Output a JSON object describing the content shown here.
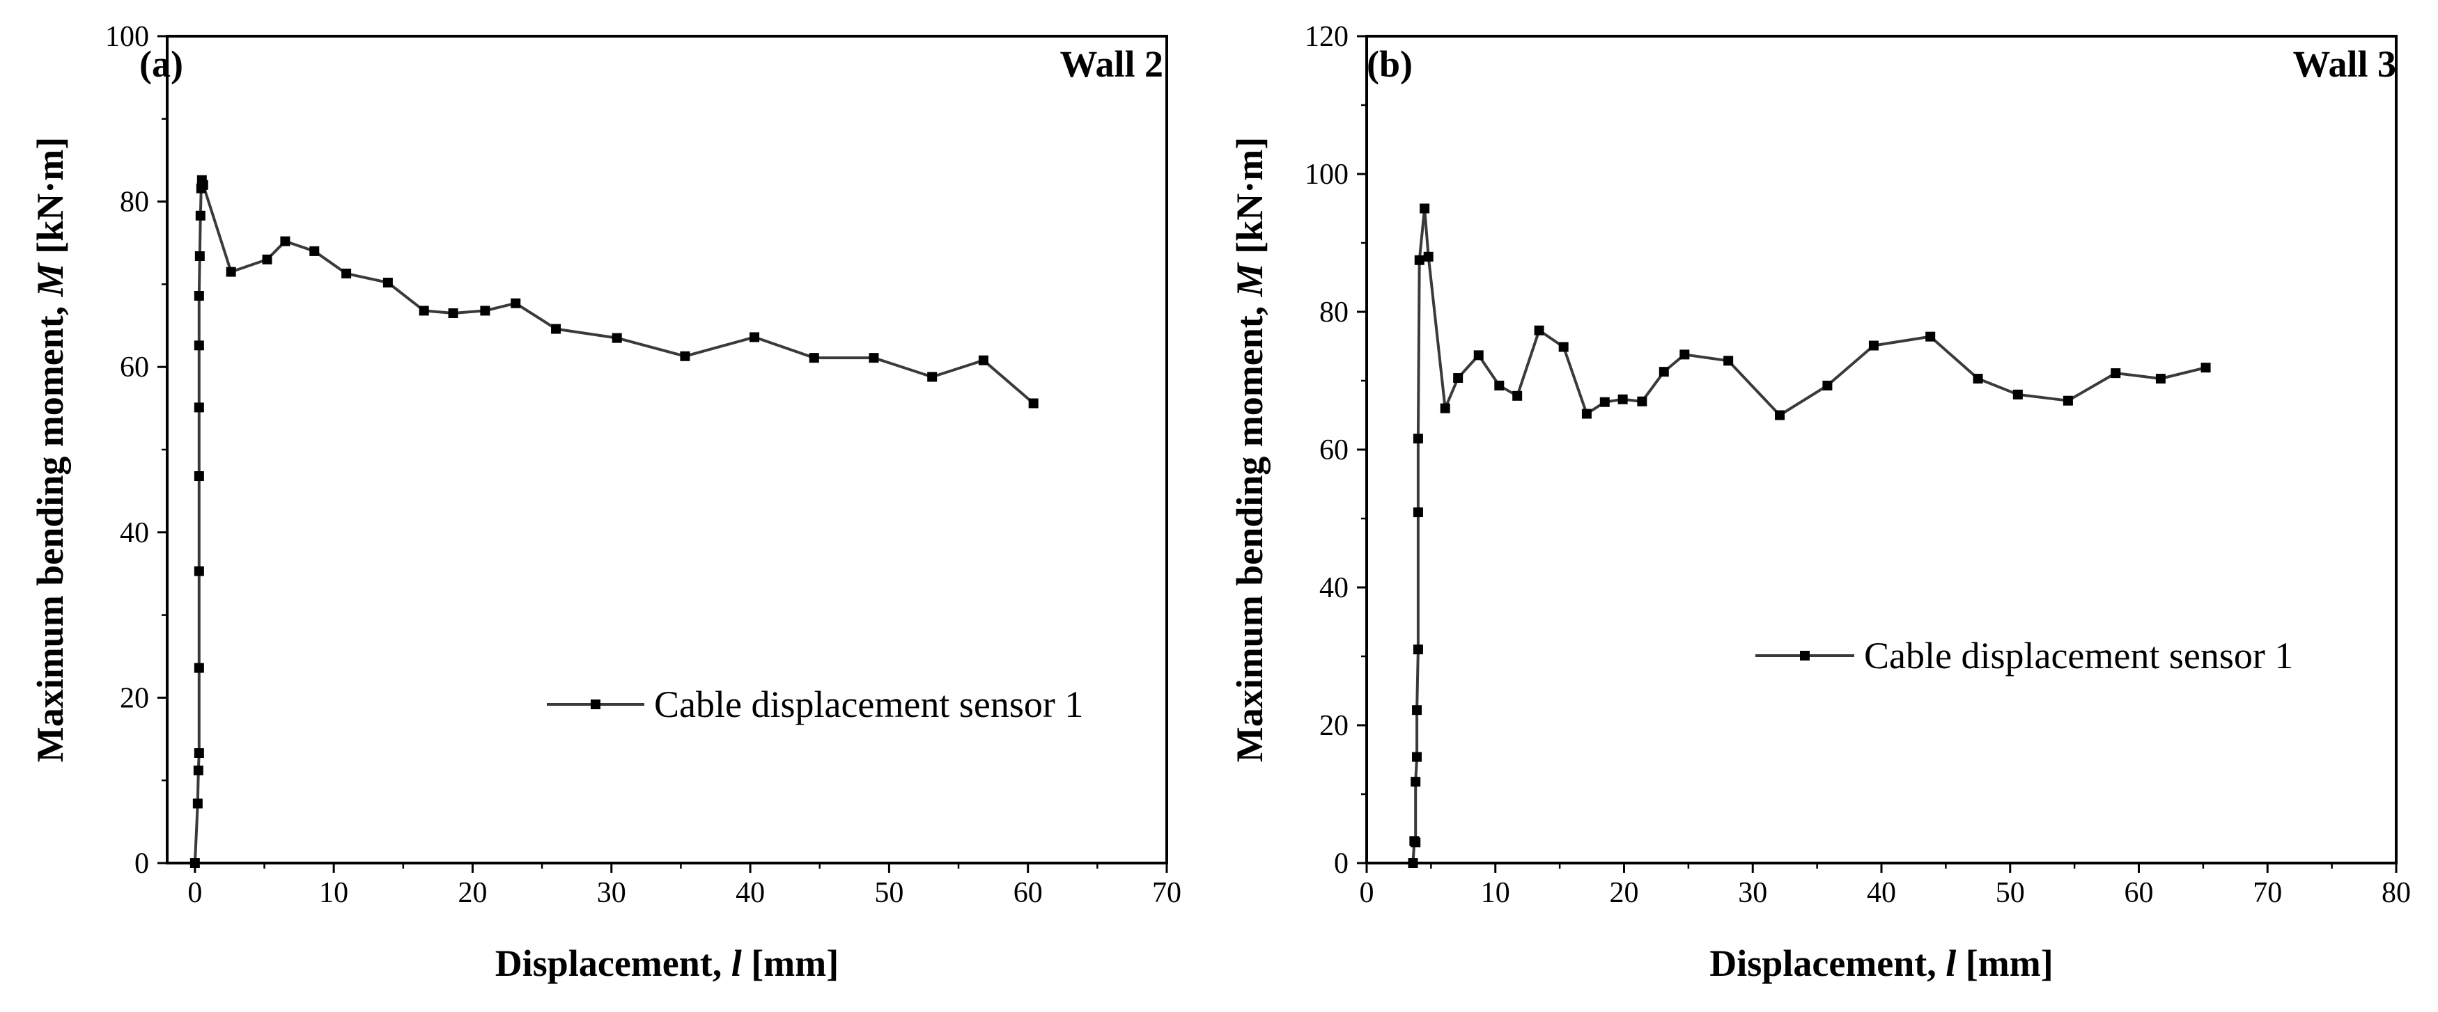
{
  "chart_data": [
    {
      "type": "line",
      "panel_label": "(a)",
      "title": "Wall 2",
      "xlabel": "Displacement, l [mm]",
      "xlabel_parts": [
        "Displacement, ",
        "l",
        " [mm]"
      ],
      "ylabel": "Maximum bending moment, M [kN·m]",
      "ylabel_parts": [
        "Maximum bending moment, ",
        "M",
        " [kN·m]"
      ],
      "xlim": [
        -2,
        70
      ],
      "ylim": [
        0,
        100
      ],
      "xticks": [
        0,
        10,
        20,
        30,
        40,
        50,
        60,
        70
      ],
      "yticks": [
        0,
        20,
        40,
        60,
        80,
        100
      ],
      "grid": false,
      "legend_position": "center-right",
      "series": [
        {
          "name": "Cable displacement sensor 1",
          "color": "#3a3a3a",
          "marker": "square",
          "x": [
            0.0,
            0.2,
            0.25,
            0.3,
            0.3,
            0.3,
            0.3,
            0.3,
            0.3,
            0.3,
            0.35,
            0.4,
            0.45,
            0.5,
            0.6,
            2.6,
            5.2,
            6.5,
            8.6,
            10.9,
            13.9,
            16.5,
            18.6,
            20.9,
            23.1,
            26.0,
            30.4,
            35.3,
            40.3,
            44.6,
            48.9,
            53.1,
            56.8,
            60.4
          ],
          "y": [
            0.0,
            7.2,
            11.2,
            13.3,
            23.6,
            35.3,
            46.8,
            55.1,
            62.6,
            68.6,
            73.4,
            78.3,
            81.6,
            82.6,
            82.0,
            71.5,
            73.0,
            75.2,
            74.0,
            71.3,
            70.2,
            66.8,
            66.5,
            66.8,
            67.7,
            64.6,
            63.5,
            61.3,
            63.6,
            61.1,
            61.1,
            58.8,
            60.8,
            55.6
          ]
        }
      ]
    },
    {
      "type": "line",
      "panel_label": "(b)",
      "title": "Wall 3",
      "xlabel": "Displacement, l [mm]",
      "xlabel_parts": [
        "Displacement, ",
        "l",
        " [mm]"
      ],
      "ylabel": "Maximum bending moment, M [kN·m]",
      "ylabel_parts": [
        "Maximum bending moment, ",
        "M",
        " [kN·m]"
      ],
      "xlim": [
        0,
        80
      ],
      "ylim": [
        0,
        120
      ],
      "xticks": [
        0,
        10,
        20,
        30,
        40,
        50,
        60,
        70,
        80
      ],
      "yticks": [
        0,
        20,
        40,
        60,
        80,
        100,
        120
      ],
      "grid": false,
      "legend_position": "center-right",
      "series": [
        {
          "name": "Cable displacement sensor 1",
          "color": "#3a3a3a",
          "marker": "square",
          "x": [
            3.6,
            3.7,
            3.8,
            3.8,
            3.9,
            3.9,
            4.0,
            4.0,
            4.0,
            4.1,
            4.5,
            4.8,
            6.1,
            7.1,
            8.7,
            10.3,
            11.7,
            13.4,
            15.3,
            17.1,
            18.5,
            19.9,
            21.4,
            23.1,
            24.7,
            28.1,
            32.1,
            35.8,
            39.4,
            43.8,
            47.5,
            50.6,
            54.5,
            58.2,
            61.7,
            65.2
          ],
          "y": [
            0.0,
            3.2,
            3.0,
            11.8,
            15.4,
            22.2,
            31.0,
            50.9,
            61.6,
            87.5,
            95.0,
            88.0,
            66.0,
            70.4,
            73.7,
            69.3,
            67.8,
            77.3,
            74.9,
            65.2,
            66.9,
            67.3,
            67.0,
            71.3,
            73.8,
            72.9,
            65.0,
            69.3,
            75.1,
            76.4,
            70.3,
            68.0,
            67.1,
            71.1,
            70.3,
            71.9
          ]
        }
      ]
    }
  ]
}
